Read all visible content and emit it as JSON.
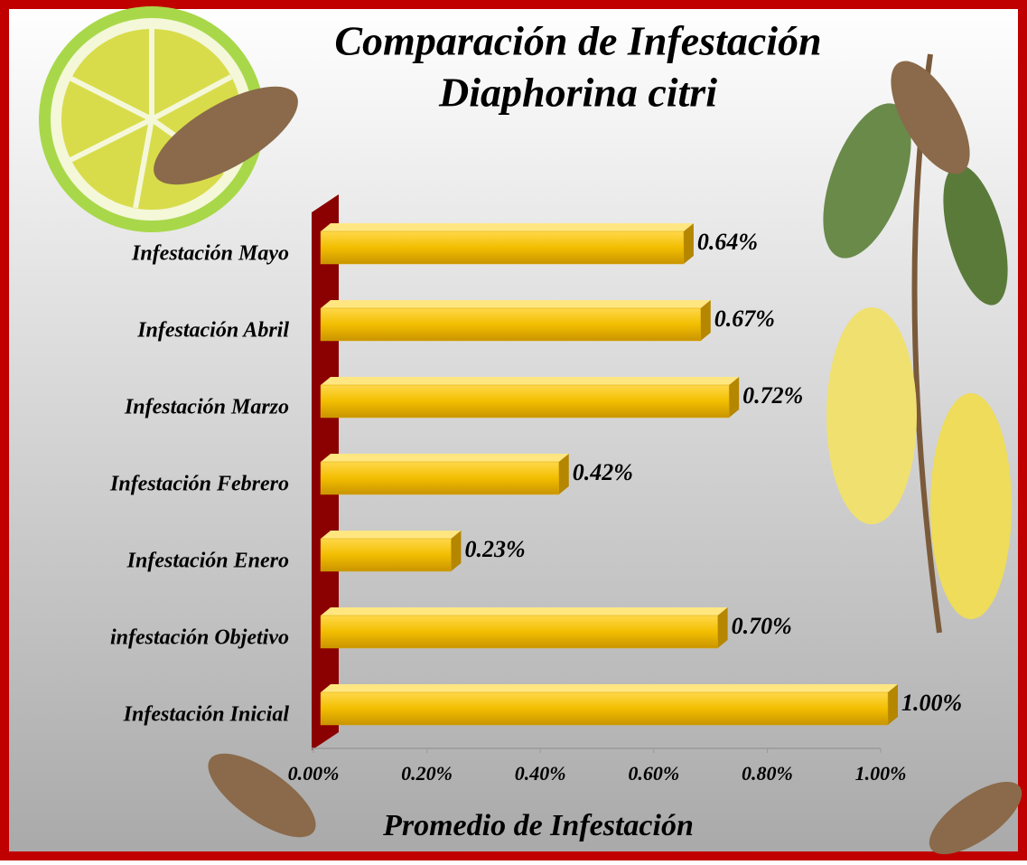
{
  "chart_data": {
    "type": "bar",
    "orientation": "horizontal",
    "title": [
      "Comparación de Infestación",
      "Diaphorina citri"
    ],
    "x_label": "Promedio de Infestación",
    "categories": [
      "Infestación Mayo",
      "Infestación Abril",
      "Infestación Marzo",
      "Infestación Febrero",
      "Infestación Enero",
      "infestación Objetivo",
      "Infestación Inicial"
    ],
    "values": [
      0.64,
      0.67,
      0.72,
      0.42,
      0.23,
      0.7,
      1.0
    ],
    "value_labels": [
      "0.64%",
      "0.67%",
      "0.72%",
      "0.42%",
      "0.23%",
      "0.70%",
      "1.00%"
    ],
    "color": "#f2be00",
    "xlim": [
      0,
      1.0
    ],
    "xticks": [
      {
        "value": 0,
        "label": "0.00%"
      },
      {
        "value": 0.2,
        "label": "0.20%"
      },
      {
        "value": 0.4,
        "label": "0.40%"
      },
      {
        "value": 0.6,
        "label": "0.60%"
      },
      {
        "value": 0.8,
        "label": "0.80%"
      },
      {
        "value": 1.0,
        "label": "1.00%"
      }
    ]
  }
}
